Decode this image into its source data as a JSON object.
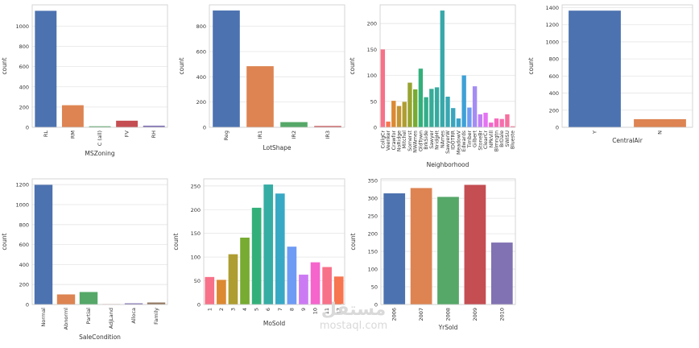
{
  "watermark": {
    "arabic": "مستقل",
    "latin": "mostaql.com"
  },
  "chart_data": [
    {
      "type": "bar",
      "xlabel": "MSZoning",
      "ylabel": "count",
      "categories": [
        "RL",
        "RM",
        "C (all)",
        "FV",
        "RH"
      ],
      "values": [
        1151,
        218,
        10,
        65,
        16
      ],
      "ylim": [
        0,
        1210
      ],
      "yticks": [
        0,
        200,
        400,
        600,
        800,
        1000
      ],
      "colors": [
        "#4c72b0",
        "#dd8452",
        "#55a868",
        "#c44e52",
        "#8172b3"
      ],
      "grid": true
    },
    {
      "type": "bar",
      "xlabel": "LotShape",
      "ylabel": "count",
      "categories": [
        "Reg",
        "IR1",
        "IR2",
        "IR3"
      ],
      "values": [
        925,
        484,
        41,
        10
      ],
      "ylim": [
        0,
        970
      ],
      "yticks": [
        0,
        200,
        400,
        600,
        800
      ],
      "colors": [
        "#4c72b0",
        "#dd8452",
        "#55a868",
        "#c44e52"
      ],
      "grid": true
    },
    {
      "type": "bar",
      "xlabel": "Neighborhood",
      "ylabel": "count",
      "categories": [
        "CollgCr",
        "Veenker",
        "Crawfor",
        "NoRidge",
        "Mitchel",
        "Somerst",
        "NWAmes",
        "OldTown",
        "BrkSide",
        "Sawyer",
        "NridgHt",
        "NAmes",
        "SawyerW",
        "IDOTRR",
        "MeadowV",
        "Edwards",
        "Timber",
        "Gilbert",
        "StoneBr",
        "ClearCr",
        "NPkVill",
        "Blmngtn",
        "BrDale",
        "SWISU",
        "Blueste"
      ],
      "values": [
        150,
        11,
        51,
        41,
        49,
        86,
        73,
        113,
        58,
        74,
        77,
        225,
        59,
        37,
        17,
        100,
        38,
        79,
        25,
        28,
        9,
        17,
        16,
        25,
        2
      ],
      "ylim": [
        0,
        236
      ],
      "yticks": [
        0,
        50,
        100,
        150,
        200
      ],
      "colors": [
        "#f77189",
        "#f7754f",
        "#dc8932",
        "#c39532",
        "#ae9d31",
        "#97a431",
        "#77ab31",
        "#33b07a",
        "#35ad8b",
        "#36ab97",
        "#37aaa0",
        "#38a8a9",
        "#39a7b2",
        "#3aa5bc",
        "#3ba3c8",
        "#3ea1d6",
        "#6e9bf4",
        "#a48cf4",
        "#c27ff4",
        "#e472f2",
        "#f565cc",
        "#f66bbd",
        "#f66eae",
        "#f6709f",
        "#f77090"
      ],
      "grid": true
    },
    {
      "type": "bar",
      "xlabel": "CentralAir",
      "ylabel": "count",
      "categories": [
        "Y",
        "N"
      ],
      "values": [
        1365,
        95
      ],
      "ylim": [
        0,
        1433
      ],
      "yticks": [
        0,
        200,
        400,
        600,
        800,
        1000,
        1200,
        1400
      ],
      "colors": [
        "#4c72b0",
        "#dd8452"
      ],
      "grid": true
    },
    {
      "type": "bar",
      "xlabel": "SaleCondition",
      "ylabel": "count",
      "categories": [
        "Normal",
        "Abnorml",
        "Partial",
        "AdjLand",
        "Alloca",
        "Family"
      ],
      "values": [
        1198,
        101,
        125,
        4,
        12,
        20
      ],
      "ylim": [
        0,
        1258
      ],
      "yticks": [
        0,
        200,
        400,
        600,
        800,
        1000,
        1200
      ],
      "colors": [
        "#4c72b0",
        "#dd8452",
        "#55a868",
        "#c44e52",
        "#8172b3",
        "#937860"
      ],
      "grid": true
    },
    {
      "type": "bar",
      "xlabel": "MoSold",
      "ylabel": "count",
      "categories": [
        "1",
        "2",
        "3",
        "4",
        "5",
        "6",
        "7",
        "8",
        "9",
        "10",
        "11",
        "12"
      ],
      "values": [
        58,
        52,
        106,
        141,
        204,
        253,
        234,
        122,
        63,
        89,
        79,
        59
      ],
      "ylim": [
        0,
        265
      ],
      "yticks": [
        0,
        50,
        100,
        150,
        200,
        250
      ],
      "colors": [
        "#f77189",
        "#dc8932",
        "#ae9d31",
        "#77ab31",
        "#33b07a",
        "#36ada4",
        "#38a9c5",
        "#6e9bf4",
        "#cc7af4",
        "#f565cc",
        "#f77189",
        "#f7754f"
      ],
      "grid": true
    },
    {
      "type": "bar",
      "xlabel": "YrSold",
      "ylabel": "count",
      "categories": [
        "2006",
        "2007",
        "2008",
        "2009",
        "2010"
      ],
      "values": [
        314,
        329,
        304,
        338,
        175
      ],
      "ylim": [
        0,
        355
      ],
      "yticks": [
        0,
        50,
        100,
        150,
        200,
        250,
        300,
        350
      ],
      "colors": [
        "#4c72b0",
        "#dd8452",
        "#55a868",
        "#c44e52",
        "#8172b3"
      ],
      "grid": true
    }
  ]
}
